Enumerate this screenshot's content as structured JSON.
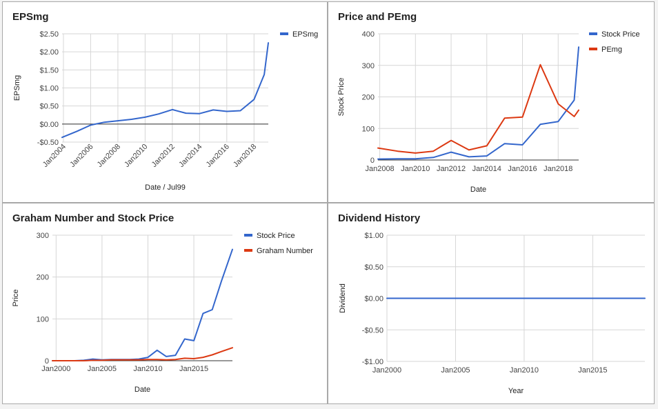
{
  "chart_data": [
    {
      "id": "eps",
      "type": "line",
      "title": "EPSmg",
      "xlabel": "Date / Jul99",
      "ylabel": "EPSmg",
      "x_start": 2003.9,
      "x_end": 2019.05,
      "ylim": [
        -0.5,
        2.5
      ],
      "x_ticks": [
        {
          "value": 2004,
          "label": "Jan2004"
        },
        {
          "value": 2006,
          "label": "Jan2006"
        },
        {
          "value": 2008,
          "label": "Jan2008"
        },
        {
          "value": 2010,
          "label": "Jan2010"
        },
        {
          "value": 2012,
          "label": "Jan2012"
        },
        {
          "value": 2014,
          "label": "Jan2014"
        },
        {
          "value": 2016,
          "label": "Jan2016"
        },
        {
          "value": 2018,
          "label": "Jan2018"
        }
      ],
      "y_ticks": [
        {
          "value": 2.5,
          "label": "$2.50"
        },
        {
          "value": 2.0,
          "label": "$2.00"
        },
        {
          "value": 1.5,
          "label": "$1.50"
        },
        {
          "value": 1.0,
          "label": "$1.00"
        },
        {
          "value": 0.5,
          "label": "$0.50"
        },
        {
          "value": 0.0,
          "label": "$0.00"
        },
        {
          "value": -0.5,
          "label": "-$0.50"
        }
      ],
      "zero_line": true,
      "rotate_x_labels": true,
      "grid": true,
      "legend_position": "top-right",
      "series": [
        {
          "name": "EPSmg",
          "color": "#3366cc",
          "x": [
            2003.9,
            2005,
            2006,
            2007,
            2008,
            2009,
            2010,
            2011,
            2012,
            2013,
            2014,
            2015,
            2016,
            2017,
            2018,
            2018.75,
            2019.05
          ],
          "y": [
            -0.37,
            -0.2,
            -0.03,
            0.05,
            0.09,
            0.13,
            0.19,
            0.28,
            0.4,
            0.3,
            0.29,
            0.39,
            0.35,
            0.37,
            0.68,
            1.37,
            2.25
          ]
        }
      ]
    },
    {
      "id": "price_pe",
      "type": "line",
      "title": "Price and PEmg",
      "xlabel": "Date",
      "ylabel": "Stock Price",
      "x_start": 2007.9,
      "x_end": 2019.15,
      "ylim": [
        0,
        400
      ],
      "x_ticks": [
        {
          "value": 2008,
          "label": "Jan2008"
        },
        {
          "value": 2010,
          "label": "Jan2010"
        },
        {
          "value": 2012,
          "label": "Jan2012"
        },
        {
          "value": 2014,
          "label": "Jan2014"
        },
        {
          "value": 2016,
          "label": "Jan2016"
        },
        {
          "value": 2018,
          "label": "Jan2018"
        }
      ],
      "y_ticks": [
        {
          "value": 0,
          "label": "0"
        },
        {
          "value": 100,
          "label": "100"
        },
        {
          "value": 200,
          "label": "200"
        },
        {
          "value": 300,
          "label": "300"
        },
        {
          "value": 400,
          "label": "400"
        }
      ],
      "zero_line": true,
      "rotate_x_labels": false,
      "grid": true,
      "legend_position": "top-right",
      "series": [
        {
          "name": "Stock Price",
          "color": "#3366cc",
          "x": [
            2007.9,
            2009,
            2010,
            2011,
            2012,
            2013,
            2014,
            2015,
            2016,
            2017,
            2018,
            2018.9,
            2019.15
          ],
          "y": [
            3,
            4,
            4,
            8,
            25,
            10,
            13,
            52,
            48,
            113,
            122,
            190,
            358
          ]
        },
        {
          "name": "PEmg",
          "color": "#dc3912",
          "x": [
            2007.9,
            2009,
            2010,
            2011,
            2012,
            2013,
            2014,
            2015,
            2016,
            2017,
            2018,
            2018.9,
            2019.15
          ],
          "y": [
            38,
            28,
            22,
            28,
            62,
            32,
            45,
            133,
            136,
            302,
            178,
            138,
            158
          ]
        }
      ]
    },
    {
      "id": "graham",
      "type": "line",
      "title": "Graham Number and Stock Price",
      "xlabel": "Date",
      "ylabel": "Price",
      "x_start": 1999.6,
      "x_end": 2019.2,
      "ylim": [
        0,
        300
      ],
      "x_ticks": [
        {
          "value": 2000,
          "label": "Jan2000"
        },
        {
          "value": 2005,
          "label": "Jan2005"
        },
        {
          "value": 2010,
          "label": "Jan2010"
        },
        {
          "value": 2015,
          "label": "Jan2015"
        }
      ],
      "y_ticks": [
        {
          "value": 0,
          "label": "0"
        },
        {
          "value": 100,
          "label": "100"
        },
        {
          "value": 200,
          "label": "200"
        },
        {
          "value": 300,
          "label": "300"
        }
      ],
      "zero_line": true,
      "rotate_x_labels": false,
      "grid": true,
      "legend_position": "top-right",
      "series": [
        {
          "name": "Stock Price",
          "color": "#3366cc",
          "x": [
            1999.6,
            2001,
            2002,
            2003,
            2004,
            2005,
            2006,
            2007,
            2008,
            2009,
            2010,
            2011,
            2012,
            2013,
            2014,
            2015,
            2016,
            2017,
            2018,
            2019.2
          ],
          "y": [
            0,
            0,
            0,
            1,
            4,
            2,
            3,
            3,
            3,
            4,
            8,
            25,
            10,
            13,
            52,
            48,
            113,
            122,
            190,
            266
          ]
        },
        {
          "name": "Graham Number",
          "color": "#dc3912",
          "x": [
            1999.6,
            2001,
            2002,
            2003,
            2004,
            2005,
            2006,
            2007,
            2008,
            2009,
            2010,
            2011,
            2012,
            2013,
            2014,
            2015,
            2016,
            2017,
            2018,
            2019.2
          ],
          "y": [
            0,
            0,
            0,
            0,
            1,
            1,
            2,
            2,
            2,
            2,
            3,
            3,
            2,
            3,
            6,
            5,
            8,
            14,
            22,
            31
          ]
        }
      ]
    },
    {
      "id": "dividend",
      "type": "line",
      "title": "Dividend History",
      "xlabel": "Year",
      "ylabel": "Dividend",
      "x_start": 2000,
      "x_end": 2018.8,
      "ylim": [
        -1,
        1
      ],
      "x_ticks": [
        {
          "value": 2000,
          "label": "Jan2000"
        },
        {
          "value": 2005,
          "label": "Jan2005"
        },
        {
          "value": 2010,
          "label": "Jan2010"
        },
        {
          "value": 2015,
          "label": "Jan2015"
        }
      ],
      "y_ticks": [
        {
          "value": 1.0,
          "label": "$1.00"
        },
        {
          "value": 0.5,
          "label": "$0.50"
        },
        {
          "value": 0.0,
          "label": "$0.00"
        },
        {
          "value": -0.5,
          "label": "-$0.50"
        },
        {
          "value": -1.0,
          "label": "-$1.00"
        }
      ],
      "zero_line": false,
      "rotate_x_labels": false,
      "grid": true,
      "legend_position": "none",
      "series": [
        {
          "name": "",
          "color": "#3366cc",
          "x": [
            2000,
            2005,
            2010,
            2015,
            2018.8
          ],
          "y": [
            0,
            0,
            0,
            0,
            0
          ]
        }
      ]
    }
  ]
}
